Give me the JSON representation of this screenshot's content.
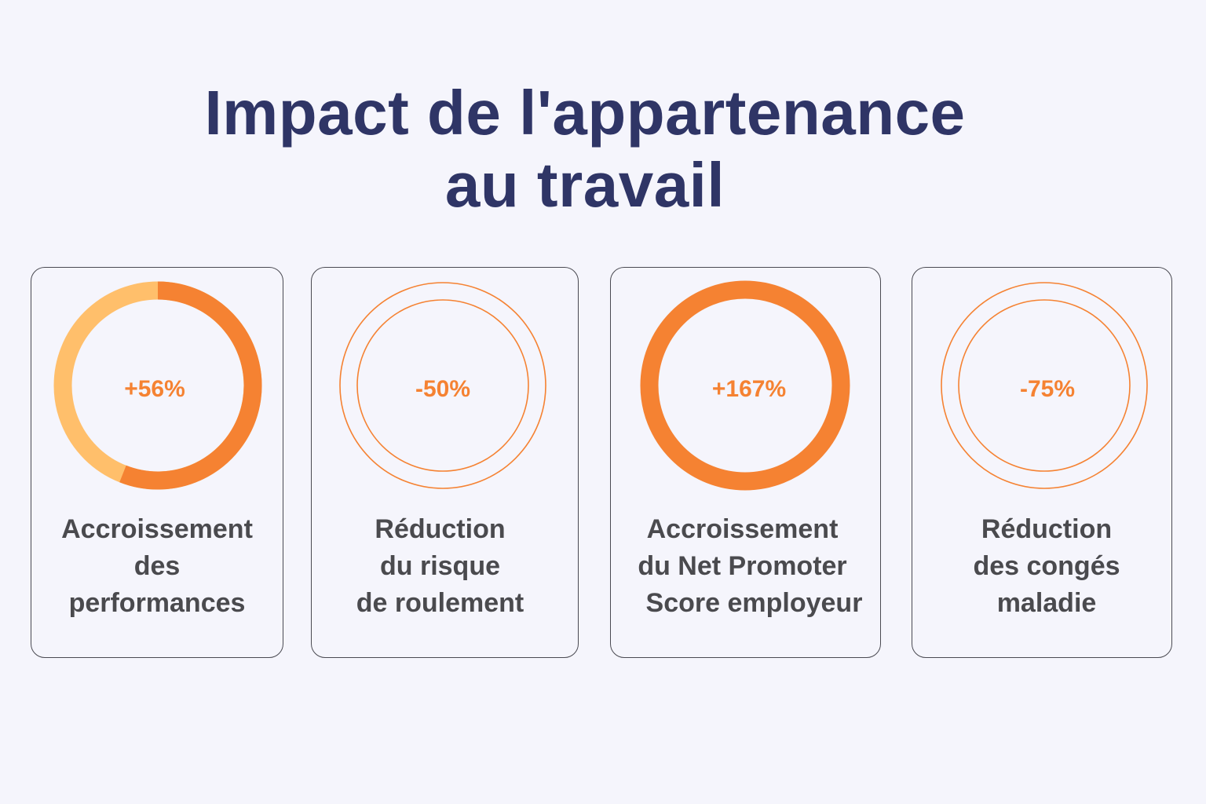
{
  "title": {
    "line1": "Impact de l'appartenance",
    "line2": "au travail"
  },
  "colors": {
    "accent": "#f58232",
    "accent_light": "#ffbf6b",
    "title": "#2f3566",
    "text": "#4a4a4e",
    "background": "#f5f5fc"
  },
  "chart_data": [
    {
      "type": "pie",
      "style": "donut",
      "value_label": "+56%",
      "value": 56,
      "label_lines": [
        "Accroissement",
        "des",
        "performances"
      ]
    },
    {
      "type": "pie",
      "style": "double-outline",
      "value_label": "-50%",
      "value": -50,
      "label_lines": [
        "Réduction",
        "du risque",
        "de roulement"
      ]
    },
    {
      "type": "pie",
      "style": "donut-full",
      "value_label": "+167%",
      "value": 167,
      "label_lines": [
        "Accroissement",
        "du Net Promoter",
        "Score employeur"
      ]
    },
    {
      "type": "pie",
      "style": "double-outline",
      "value_label": "-75%",
      "value": -75,
      "label_lines": [
        "Réduction",
        "des congés",
        "maladie"
      ]
    }
  ]
}
